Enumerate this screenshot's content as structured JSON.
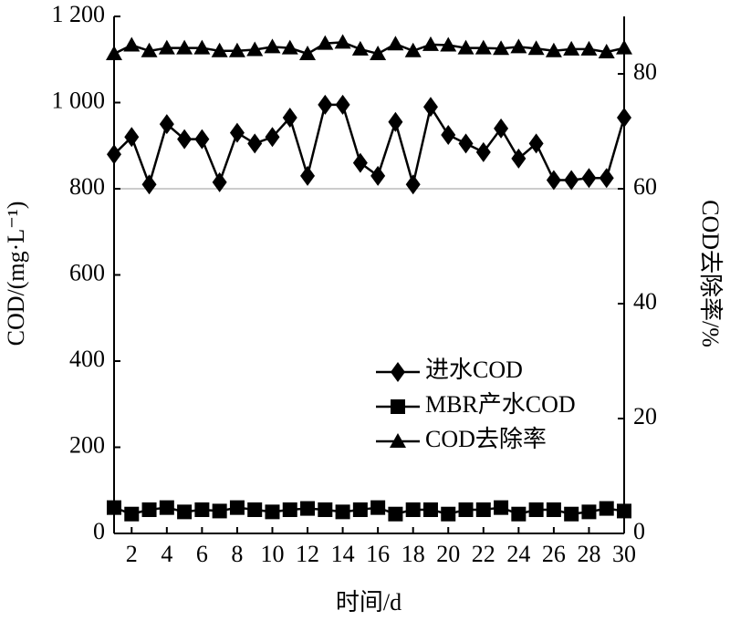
{
  "chart_data": {
    "type": "line",
    "x_label": "时间/d",
    "y_label": "COD/(mg·L⁻¹)",
    "y2_label": "COD去除率/%",
    "x": [
      1,
      2,
      3,
      4,
      5,
      6,
      7,
      8,
      9,
      10,
      11,
      12,
      13,
      14,
      15,
      16,
      17,
      18,
      19,
      20,
      21,
      22,
      23,
      24,
      25,
      26,
      27,
      28,
      29,
      30
    ],
    "xlim": [
      1,
      30
    ],
    "xticks": [
      2,
      4,
      6,
      8,
      10,
      12,
      14,
      16,
      18,
      20,
      22,
      24,
      26,
      28,
      30
    ],
    "ylim": [
      0,
      1200
    ],
    "yticks": [
      0,
      200,
      400,
      600,
      800,
      {
        "value": 1000,
        "label": "1 000"
      },
      {
        "value": 1200,
        "label": "1 200"
      }
    ],
    "y2lim": [
      0,
      90
    ],
    "y2ticks": [
      0,
      20,
      40,
      60,
      80
    ],
    "reference_line": 800,
    "legend": "center-right",
    "series": [
      {
        "name": "进水COD",
        "color": "#000000",
        "marker": "diamond",
        "values": [
          880,
          920,
          810,
          950,
          915,
          915,
          815,
          930,
          905,
          920,
          965,
          830,
          995,
          995,
          860,
          830,
          955,
          810,
          990,
          925,
          905,
          885,
          940,
          870,
          905,
          820,
          820,
          825,
          825,
          965
        ]
      },
      {
        "name": "MBR产水COD",
        "color": "#000000",
        "marker": "square",
        "values": [
          60,
          45,
          55,
          60,
          50,
          55,
          52,
          60,
          55,
          50,
          55,
          58,
          55,
          50,
          55,
          60,
          45,
          55,
          55,
          45,
          55,
          55,
          60,
          45,
          55,
          55,
          45,
          50,
          58,
          52
        ]
      },
      {
        "name": "COD去除率",
        "color": "#000000",
        "marker": "triangle",
        "axis": "y2",
        "values": [
          83.5,
          85,
          84,
          84.5,
          84.5,
          84.5,
          84,
          84,
          84.2,
          84.7,
          84.5,
          83.5,
          85.3,
          85.5,
          84.3,
          83.5,
          85.2,
          84,
          85.1,
          85,
          84.5,
          84.5,
          84.4,
          84.7,
          84.4,
          84,
          84.3,
          84.3,
          83.8,
          84.5
        ]
      }
    ]
  }
}
